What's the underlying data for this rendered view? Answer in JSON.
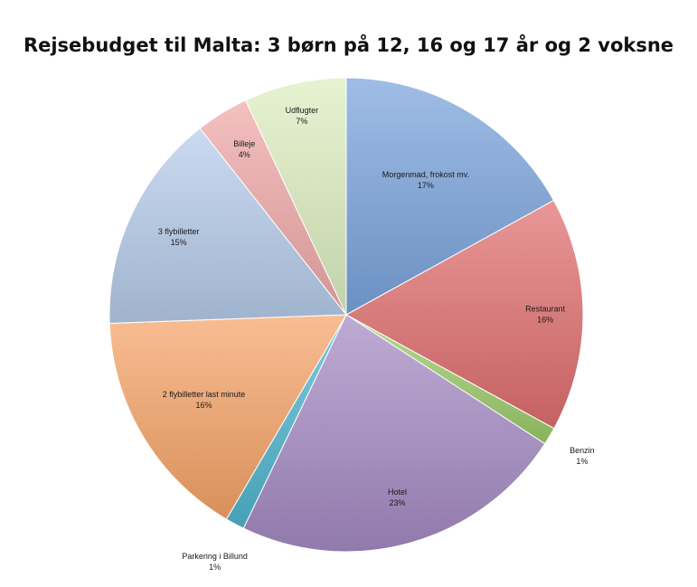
{
  "chart_data": {
    "type": "pie",
    "title": "Rejsebudget til Malta: 3 børn på 12, 16 og 17 år og 2 voksne",
    "slices": [
      {
        "label": "Morgenmad, frokost mv.",
        "percent_label": "17%",
        "value": 17,
        "color": "#7aa4dc"
      },
      {
        "label": "Restaurant",
        "percent_label": "16%",
        "value": 16,
        "color": "#e06e6e"
      },
      {
        "label": "Benzin",
        "percent_label": "1%",
        "value": 1.2,
        "color": "#9ccb6a"
      },
      {
        "label": "Hotel",
        "percent_label": "23%",
        "value": 23,
        "color": "#a58bc3"
      },
      {
        "label": "Parkering i Billund",
        "percent_label": "1%",
        "value": 1.3,
        "color": "#4fb6cf"
      },
      {
        "label": "2 flybilletter last minute",
        "percent_label": "16%",
        "value": 16,
        "color": "#f6a467"
      },
      {
        "label": "3 flybilletter",
        "percent_label": "15%",
        "value": 15,
        "color": "#b6cbea"
      },
      {
        "label": "Billeje",
        "percent_label": "4%",
        "value": 3.6,
        "color": "#f0a8a8"
      },
      {
        "label": "Udflugter",
        "percent_label": "7%",
        "value": 7,
        "color": "#dcefc0"
      }
    ]
  }
}
